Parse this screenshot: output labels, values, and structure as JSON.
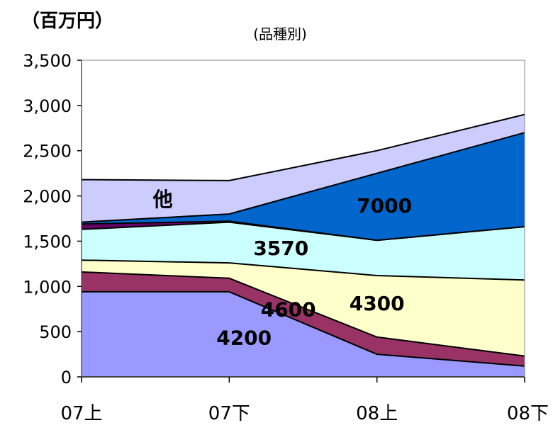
{
  "chart_data": {
    "type": "area",
    "stacked": true,
    "unit_label": "（百万円）",
    "subtitle": "(品種別)",
    "categories": [
      "07上",
      "07下",
      "08上",
      "08下"
    ],
    "y_ticks": [
      "0",
      "500",
      "1,000",
      "1,500",
      "2,000",
      "2,500",
      "3,000",
      "3,500"
    ],
    "ylim": [
      0,
      3500
    ],
    "series": [
      {
        "name": "4200",
        "color": "#9999ff",
        "values": [
          940,
          940,
          250,
          120
        ]
      },
      {
        "name": "4600",
        "color": "#993366",
        "values": [
          220,
          150,
          190,
          110
        ]
      },
      {
        "name": "4300",
        "color": "#ffffcc",
        "values": [
          130,
          170,
          680,
          840
        ]
      },
      {
        "name": "3570",
        "color": "#ccffff",
        "values": [
          340,
          450,
          390,
          590
        ]
      },
      {
        "name": "",
        "color": "#660066",
        "values": [
          60,
          10,
          0,
          0
        ]
      },
      {
        "name": "7000",
        "color": "#0066cc",
        "values": [
          20,
          80,
          740,
          1040
        ]
      },
      {
        "name": "他",
        "color": "#ccccff",
        "values": [
          470,
          370,
          250,
          200
        ]
      }
    ]
  }
}
